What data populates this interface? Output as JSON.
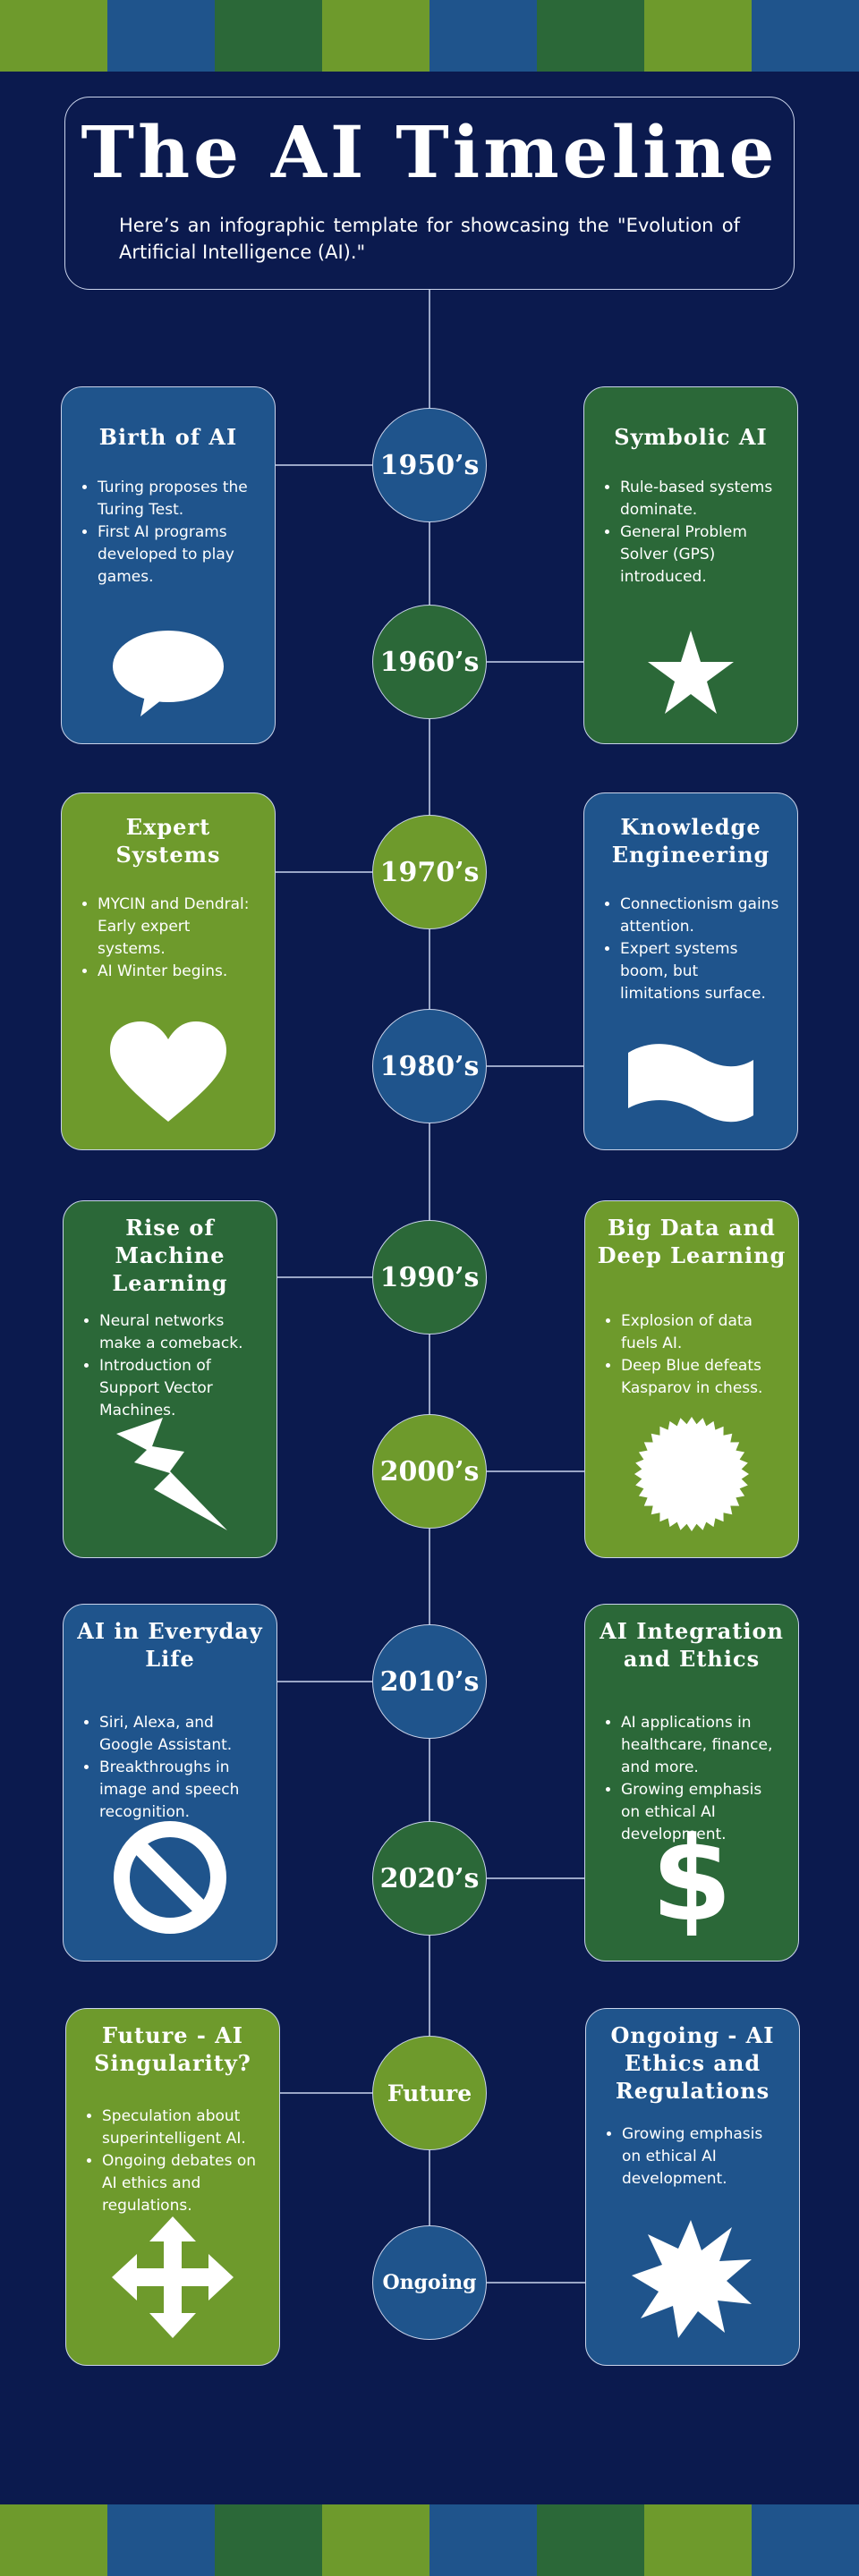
{
  "colors": {
    "background": "#0b1a4e",
    "blue": "#1f548c",
    "dark_green": "#2b6838",
    "light_green": "#6e9a2c",
    "stroke": "#c9d3ea"
  },
  "stripe_colors": [
    "#6e9a2c",
    "#1f548c",
    "#2b6838",
    "#6e9a2c",
    "#1f548c",
    "#2b6838",
    "#6e9a2c",
    "#1f548c"
  ],
  "header": {
    "title": "The AI Timeline",
    "subtitle": "Here’s an infographic template for showcasing the \"Evolution of Artificial Intelligence (AI).\""
  },
  "eras": [
    {
      "label": "1950’s",
      "color": "blue"
    },
    {
      "label": "1960’s",
      "color": "dark_green"
    },
    {
      "label": "1970’s",
      "color": "light_green"
    },
    {
      "label": "1980’s",
      "color": "blue"
    },
    {
      "label": "1990’s",
      "color": "dark_green"
    },
    {
      "label": "2000’s",
      "color": "light_green"
    },
    {
      "label": "2010’s",
      "color": "blue"
    },
    {
      "label": "2020’s",
      "color": "dark_green"
    },
    {
      "label": "Future",
      "color": "light_green"
    },
    {
      "label": "Ongoing",
      "color": "blue"
    }
  ],
  "cards": [
    {
      "title": "Birth of AI",
      "bullets": [
        "Turing proposes the Turing Test.",
        "First AI programs developed to play games."
      ],
      "icon": "speech-bubble-icon",
      "color": "blue"
    },
    {
      "title": "Symbolic AI",
      "bullets": [
        "Rule-based systems dominate.",
        "General Problem Solver (GPS) introduced."
      ],
      "icon": "star-icon",
      "color": "dark_green"
    },
    {
      "title": "Expert Systems",
      "bullets": [
        "MYCIN and Dendral: Early expert systems.",
        "AI Winter begins."
      ],
      "icon": "heart-icon",
      "color": "light_green"
    },
    {
      "title": "Knowledge Engineering",
      "bullets": [
        "Connectionism gains attention.",
        "Expert systems boom, but limitations surface."
      ],
      "icon": "wave-flag-icon",
      "color": "blue"
    },
    {
      "title": "Rise of Machine Learning",
      "bullets": [
        "Neural networks make a comeback.",
        "Introduction of Support Vector Machines."
      ],
      "icon": "lightning-bolt-icon",
      "color": "dark_green"
    },
    {
      "title": "Big Data and Deep Learning",
      "bullets": [
        "Explosion of data fuels AI.",
        "Deep Blue defeats Kasparov in chess."
      ],
      "icon": "seal-burst-icon",
      "color": "light_green"
    },
    {
      "title": "AI in Everyday Life",
      "bullets": [
        "Siri, Alexa, and Google Assistant.",
        "Breakthroughs in image and speech recognition."
      ],
      "icon": "no-symbol-icon",
      "color": "blue"
    },
    {
      "title": "AI Integration and Ethics",
      "bullets": [
        "AI applications in healthcare, finance, and more.",
        "Growing emphasis on ethical AI development."
      ],
      "icon": "dollar-sign-icon",
      "color": "dark_green"
    },
    {
      "title": "Future - AI Singularity?",
      "bullets": [
        "Speculation about superintelligent AI.",
        "Ongoing debates on AI ethics and regulations."
      ],
      "icon": "four-way-arrow-icon",
      "color": "light_green"
    },
    {
      "title": "Ongoing - AI Ethics and Regulations",
      "bullets": [
        "Growing emphasis on ethical AI development."
      ],
      "icon": "explosion-icon",
      "color": "blue"
    }
  ]
}
